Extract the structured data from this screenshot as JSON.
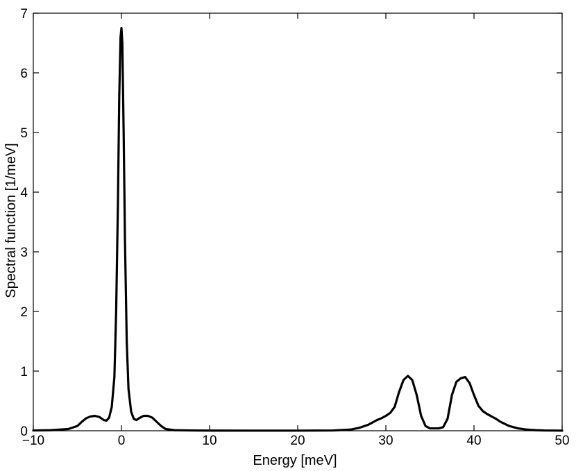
{
  "chart_data": {
    "type": "line",
    "title": "",
    "xlabel": "Energy [meV]",
    "ylabel": "Spectral function [1/meV]",
    "xlim": [
      -10,
      50
    ],
    "ylim": [
      0,
      7
    ],
    "xticks": [
      -10,
      0,
      10,
      20,
      30,
      40,
      50
    ],
    "yticks": [
      0,
      1,
      2,
      3,
      4,
      5,
      6,
      7
    ],
    "grid": false,
    "legend": "none",
    "series": [
      {
        "color": "#000000",
        "x": [
          -10,
          -8,
          -6,
          -5,
          -4.5,
          -4,
          -3.5,
          -3,
          -2.5,
          -2,
          -1.7,
          -1.4,
          -1.1,
          -0.8,
          -0.6,
          -0.4,
          -0.25,
          -0.1,
          0,
          0.1,
          0.25,
          0.4,
          0.6,
          0.8,
          1.1,
          1.4,
          1.7,
          2,
          2.5,
          3,
          3.5,
          4,
          4.5,
          5,
          6,
          8,
          10,
          15,
          20,
          24,
          26,
          27,
          28,
          28.5,
          29,
          29.5,
          30,
          30.5,
          31,
          31.5,
          32,
          32.5,
          33,
          33.5,
          34,
          34.5,
          35,
          35.5,
          36,
          36.5,
          37,
          37.5,
          38,
          38.5,
          39,
          39.5,
          40,
          40.5,
          41,
          41.5,
          42,
          42.5,
          43,
          44,
          45,
          46,
          47,
          48,
          50
        ],
        "y": [
          0.005,
          0.01,
          0.03,
          0.08,
          0.15,
          0.21,
          0.24,
          0.25,
          0.23,
          0.18,
          0.17,
          0.22,
          0.4,
          0.9,
          2.0,
          3.8,
          5.6,
          6.6,
          6.75,
          6.5,
          5.0,
          3.2,
          1.5,
          0.7,
          0.32,
          0.2,
          0.18,
          0.21,
          0.25,
          0.25,
          0.22,
          0.15,
          0.08,
          0.03,
          0.01,
          0.005,
          0.003,
          0.002,
          0.002,
          0.005,
          0.02,
          0.05,
          0.1,
          0.14,
          0.18,
          0.21,
          0.25,
          0.3,
          0.4,
          0.65,
          0.85,
          0.92,
          0.85,
          0.6,
          0.25,
          0.08,
          0.04,
          0.04,
          0.04,
          0.06,
          0.2,
          0.6,
          0.82,
          0.88,
          0.9,
          0.8,
          0.6,
          0.42,
          0.33,
          0.28,
          0.24,
          0.2,
          0.15,
          0.08,
          0.04,
          0.02,
          0.01,
          0.005,
          0.002
        ]
      }
    ]
  }
}
